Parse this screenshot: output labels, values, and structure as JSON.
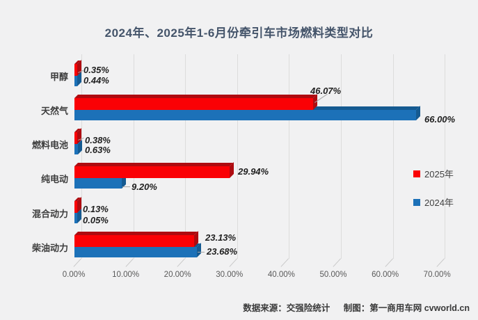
{
  "chart_title": "2024年、2025年1-6月份牵引车市场燃料类型对比",
  "footer": {
    "source": "数据来源：交强险统计",
    "credit": "制图：第一商用车网 cvworld.cn"
  },
  "legend": {
    "items": [
      {
        "label": "2025年",
        "color": "#fa0105"
      },
      {
        "label": "2024年",
        "color": "#1c71b8"
      }
    ]
  },
  "colors": {
    "background": "#f1f1f2",
    "gridline": "#dcdcdc",
    "red_2025": "#fa0105",
    "red_2025_dark": "#ae0b10",
    "blue_2024": "#1c71b8",
    "blue_2024_dark": "#155a91",
    "leader_line": "#a6a6a6",
    "title_text": "#44546a"
  },
  "chart_data": {
    "type": "bar",
    "orientation": "horizontal",
    "style": "3d",
    "title": "2024年、2025年1-6月份牵引车市场燃料类型对比",
    "categories": [
      "甲醇",
      "天然气",
      "燃料电池",
      "纯电动",
      "混合动力",
      "柴油动力"
    ],
    "series": [
      {
        "name": "2025年",
        "color": "#fa0105",
        "values": [
          0.35,
          46.07,
          0.38,
          29.94,
          0.13,
          23.13
        ],
        "labels": [
          "0.35%",
          "46.07%",
          "0.38%",
          "29.94%",
          "0.13%",
          "23.13%"
        ]
      },
      {
        "name": "2024年",
        "color": "#1c71b8",
        "values": [
          0.44,
          66.0,
          0.63,
          9.2,
          0.05,
          23.68
        ],
        "labels": [
          "0.44%",
          "66.00%",
          "0.63%",
          "9.20%",
          "0.05%",
          "23.68%"
        ]
      }
    ],
    "xlim": [
      0,
      70
    ],
    "x_ticks": [
      "0.00%",
      "10.00%",
      "20.00%",
      "30.00%",
      "40.00%",
      "50.00%",
      "60.00%",
      "70.00%"
    ],
    "grid": true,
    "legend_position": "right-middle",
    "value_labels_shown": true
  }
}
